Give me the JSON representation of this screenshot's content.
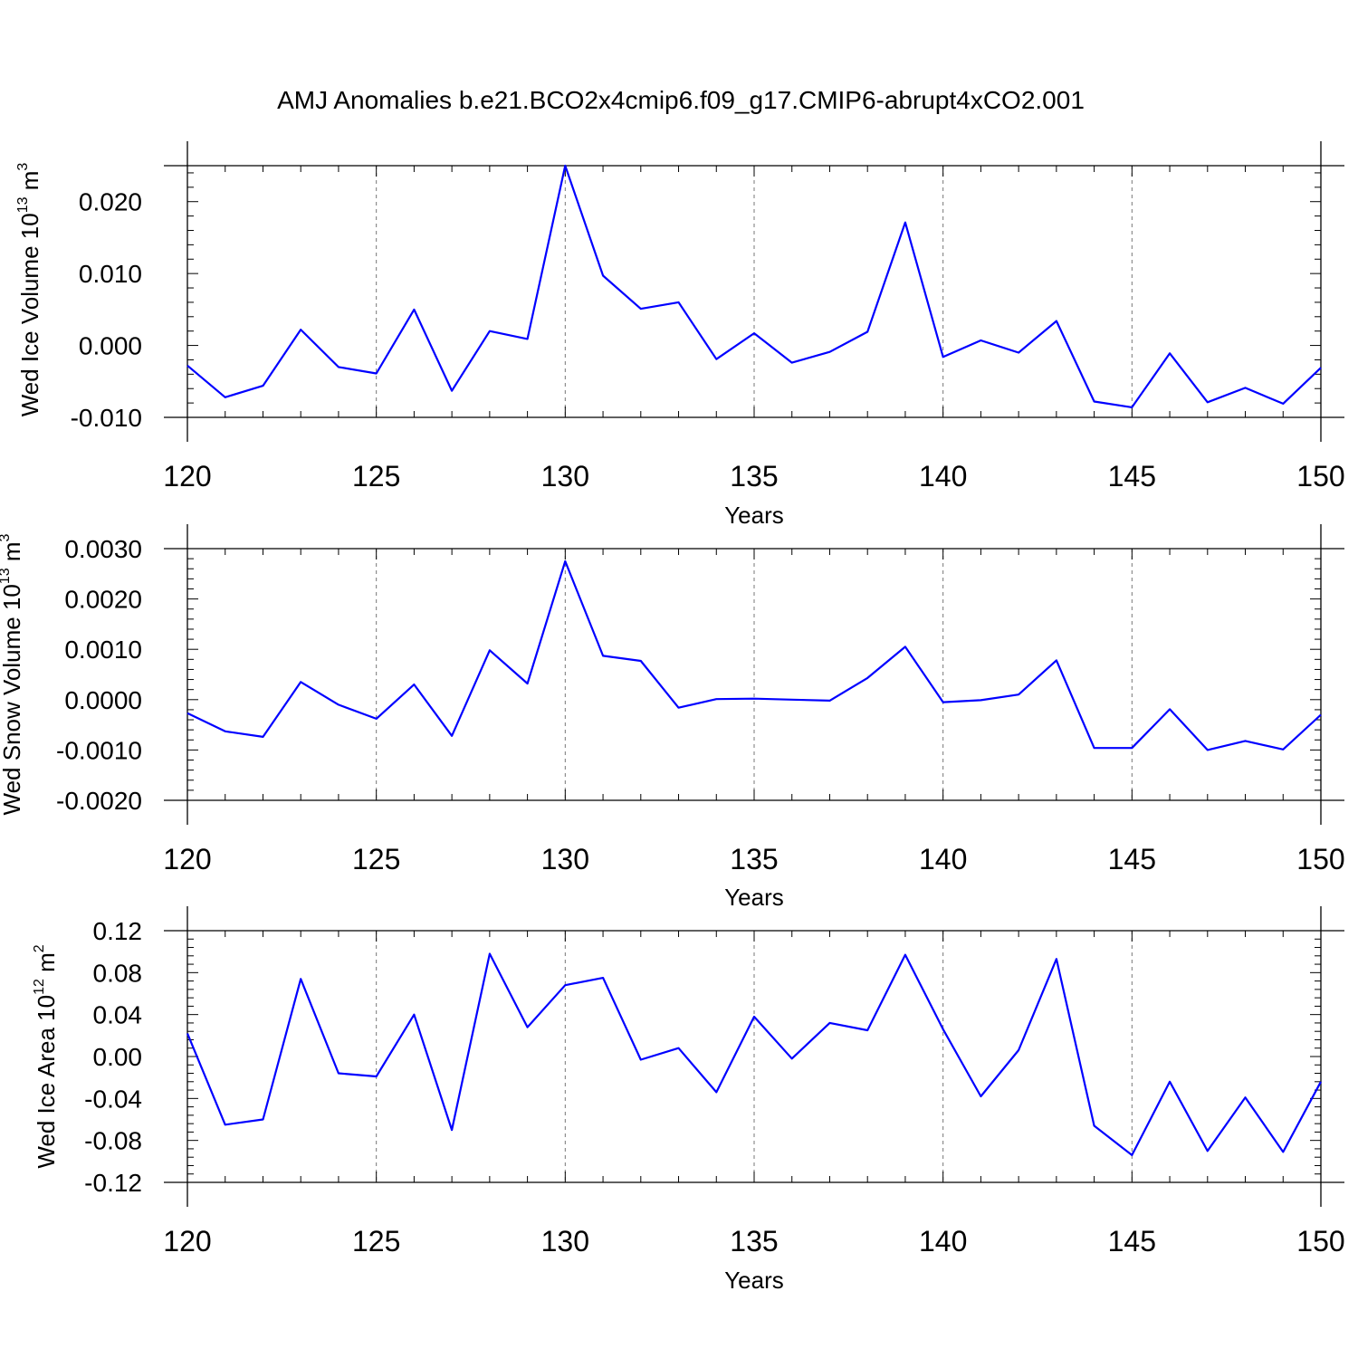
{
  "title": "AMJ Anomalies b.e21.BCO2x4cmip6.f09_g17.CMIP6-abrupt4xCO2.001",
  "chart_data": [
    {
      "type": "line",
      "xlabel": "Years",
      "ylabel_main": "Wed Ice Volume 10",
      "ylabel_exp": "13",
      "ylabel_unit": " m",
      "ylabel_unit_exp": "3",
      "xlim": [
        120,
        150
      ],
      "ylim": [
        -0.01,
        0.025
      ],
      "xticks": [
        120,
        125,
        130,
        135,
        140,
        145,
        150
      ],
      "yticks": [
        -0.01,
        0.0,
        0.01,
        0.02
      ],
      "yticklabels": [
        "-0.010",
        "0.000",
        "0.010",
        "0.020"
      ],
      "grid": "x-dashed",
      "x": [
        120,
        121,
        122,
        123,
        124,
        125,
        126,
        127,
        128,
        129,
        130,
        131,
        132,
        133,
        134,
        135,
        136,
        137,
        138,
        139,
        140,
        141,
        142,
        143,
        144,
        145,
        146,
        147,
        148,
        149,
        150
      ],
      "series": [
        {
          "values": [
            -0.0028,
            -0.0072,
            -0.0056,
            0.0022,
            -0.003,
            -0.0039,
            0.005,
            -0.0063,
            0.002,
            0.0009,
            0.025,
            0.0097,
            0.0051,
            0.006,
            -0.0019,
            0.0017,
            -0.0024,
            -0.0009,
            0.0019,
            0.0171,
            -0.0016,
            0.0007,
            -0.001,
            0.0034,
            -0.0078,
            -0.0086,
            -0.0011,
            -0.0079,
            -0.0059,
            -0.0081,
            -0.0031
          ]
        }
      ]
    },
    {
      "type": "line",
      "xlabel": "Years",
      "ylabel_main": "Wed Snow Volume 10",
      "ylabel_exp": "13",
      "ylabel_unit": " m",
      "ylabel_unit_exp": "3",
      "xlim": [
        120,
        150
      ],
      "ylim": [
        -0.002,
        0.003
      ],
      "xticks": [
        120,
        125,
        130,
        135,
        140,
        145,
        150
      ],
      "yticks": [
        -0.002,
        -0.001,
        0.0,
        0.001,
        0.002,
        0.003
      ],
      "yticklabels": [
        "-0.0020",
        "-0.0010",
        "0.0000",
        "0.0010",
        "0.0020",
        "0.0030"
      ],
      "grid": "x-dashed",
      "x": [
        120,
        121,
        122,
        123,
        124,
        125,
        126,
        127,
        128,
        129,
        130,
        131,
        132,
        133,
        134,
        135,
        136,
        137,
        138,
        139,
        140,
        141,
        142,
        143,
        144,
        145,
        146,
        147,
        148,
        149,
        150
      ],
      "series": [
        {
          "values": [
            -0.00027,
            -0.00063,
            -0.00074,
            0.00035,
            -0.0001,
            -0.00038,
            0.0003,
            -0.00072,
            0.00098,
            0.00032,
            0.00275,
            0.00087,
            0.00077,
            -0.00016,
            1e-05,
            2e-05,
            0.0,
            -2e-05,
            0.00043,
            0.00105,
            -5e-05,
            -1e-05,
            0.0001,
            0.00078,
            -0.00096,
            -0.00096,
            -0.00019,
            -0.001,
            -0.00082,
            -0.00099,
            -0.0003
          ]
        }
      ]
    },
    {
      "type": "line",
      "xlabel": "Years",
      "ylabel_main": "Wed Ice Area 10",
      "ylabel_exp": "12",
      "ylabel_unit": " m",
      "ylabel_unit_exp": "2",
      "xlim": [
        120,
        150
      ],
      "ylim": [
        -0.12,
        0.12
      ],
      "xticks": [
        120,
        125,
        130,
        135,
        140,
        145,
        150
      ],
      "yticks": [
        -0.12,
        -0.08,
        -0.04,
        0.0,
        0.04,
        0.08,
        0.12
      ],
      "yticklabels": [
        "-0.12",
        "-0.08",
        "-0.04",
        "0.00",
        "0.04",
        "0.08",
        "0.12"
      ],
      "grid": "x-dashed",
      "x": [
        120,
        121,
        122,
        123,
        124,
        125,
        126,
        127,
        128,
        129,
        130,
        131,
        132,
        133,
        134,
        135,
        136,
        137,
        138,
        139,
        140,
        141,
        142,
        143,
        144,
        145,
        146,
        147,
        148,
        149,
        150
      ],
      "series": [
        {
          "values": [
            0.022,
            -0.065,
            -0.06,
            0.074,
            -0.016,
            -0.019,
            0.04,
            -0.07,
            0.098,
            0.028,
            0.068,
            0.075,
            -0.003,
            0.008,
            -0.034,
            0.038,
            -0.002,
            0.032,
            0.025,
            0.097,
            0.026,
            -0.038,
            0.006,
            0.093,
            -0.066,
            -0.094,
            -0.024,
            -0.09,
            -0.039,
            -0.091,
            -0.024
          ]
        }
      ]
    }
  ]
}
